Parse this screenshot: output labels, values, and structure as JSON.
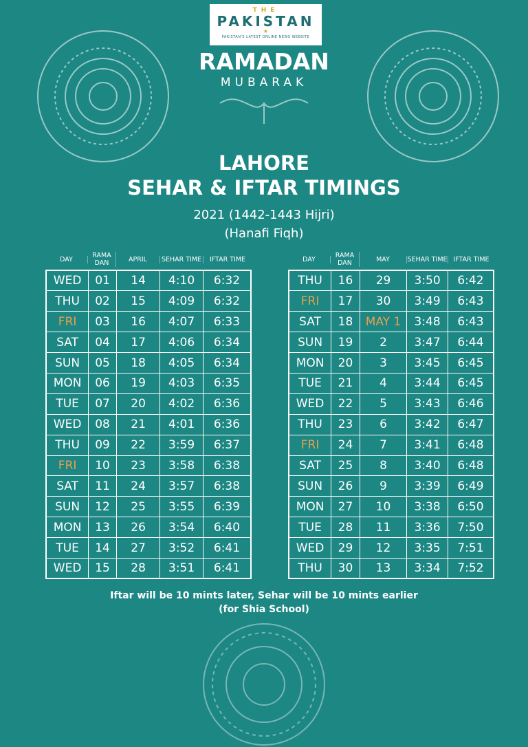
{
  "logo": {
    "the": "THE",
    "name": "PAKISTAN",
    "tagline": "PAKISTAN'S LATEST ONLINE NEWS WEBSITE"
  },
  "title": {
    "ramadan": "RAMADAN",
    "mubarak": "MUBARAK",
    "city": "LAHORE",
    "heading": "SEHAR & IFTAR TIMINGS",
    "year": "2021 (1442-1443 Hijri)",
    "fiqh": "(Hanafi Fiqh)"
  },
  "colors": {
    "background": "#1d8784",
    "highlight": "#e9a04b"
  },
  "tables": [
    {
      "headers": [
        "DAY",
        "RAMA DAN",
        "APRIL",
        "SEHAR TIME",
        "IFTAR TIME"
      ],
      "rows": [
        [
          "WED",
          "01",
          "14",
          "4:10",
          "6:32"
        ],
        [
          "THU",
          "02",
          "15",
          "4:09",
          "6:32"
        ],
        [
          "FRI",
          "03",
          "16",
          "4:07",
          "6:33"
        ],
        [
          "SAT",
          "04",
          "17",
          "4:06",
          "6:34"
        ],
        [
          "SUN",
          "05",
          "18",
          "4:05",
          "6:34"
        ],
        [
          "MON",
          "06",
          "19",
          "4:03",
          "6:35"
        ],
        [
          "TUE",
          "07",
          "20",
          "4:02",
          "6:36"
        ],
        [
          "WED",
          "08",
          "21",
          "4:01",
          "6:36"
        ],
        [
          "THU",
          "09",
          "22",
          "3:59",
          "6:37"
        ],
        [
          "FRI",
          "10",
          "23",
          "3:58",
          "6:38"
        ],
        [
          "SAT",
          "11",
          "24",
          "3:57",
          "6:38"
        ],
        [
          "SUN",
          "12",
          "25",
          "3:55",
          "6:39"
        ],
        [
          "MON",
          "13",
          "26",
          "3:54",
          "6:40"
        ],
        [
          "TUE",
          "14",
          "27",
          "3:52",
          "6:41"
        ],
        [
          "WED",
          "15",
          "28",
          "3:51",
          "6:41"
        ]
      ]
    },
    {
      "headers": [
        "DAY",
        "RAMA DAN",
        "MAY",
        "SEHAR TIME",
        "IFTAR TIME"
      ],
      "rows": [
        [
          "THU",
          "16",
          "29",
          "3:50",
          "6:42"
        ],
        [
          "FRI",
          "17",
          "30",
          "3:49",
          "6:43"
        ],
        [
          "SAT",
          "18",
          "MAY 1",
          "3:48",
          "6:43"
        ],
        [
          "SUN",
          "19",
          "2",
          "3:47",
          "6:44"
        ],
        [
          "MON",
          "20",
          "3",
          "3:45",
          "6:45"
        ],
        [
          "TUE",
          "21",
          "4",
          "3:44",
          "6:45"
        ],
        [
          "WED",
          "22",
          "5",
          "3:43",
          "6:46"
        ],
        [
          "THU",
          "23",
          "6",
          "3:42",
          "6:47"
        ],
        [
          "FRI",
          "24",
          "7",
          "3:41",
          "6:48"
        ],
        [
          "SAT",
          "25",
          "8",
          "3:40",
          "6:48"
        ],
        [
          "SUN",
          "26",
          "9",
          "3:39",
          "6:49"
        ],
        [
          "MON",
          "27",
          "10",
          "3:38",
          "6:50"
        ],
        [
          "TUE",
          "28",
          "11",
          "3:36",
          "7:50"
        ],
        [
          "WED",
          "29",
          "12",
          "3:35",
          "7:51"
        ],
        [
          "THU",
          "30",
          "13",
          "3:34",
          "7:52"
        ]
      ]
    }
  ],
  "highlighted_values": [
    "FRI",
    "MAY 1"
  ],
  "footer": {
    "line1": "Iftar will be 10 mints later, Sehar will be 10 mints earlier",
    "line2": "(for Shia School)"
  }
}
